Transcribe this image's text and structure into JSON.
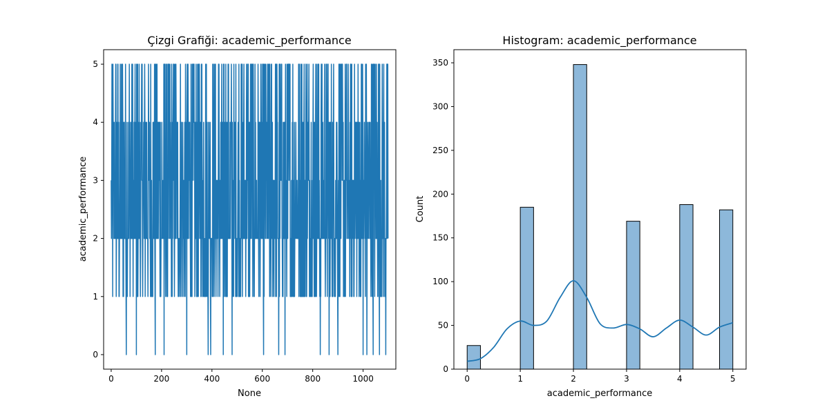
{
  "chart_data": [
    {
      "type": "line",
      "title": "Çizgi Grafiği: academic_performance",
      "xlabel": "None",
      "ylabel": "academic_performance",
      "xlim": [
        -30,
        1130
      ],
      "ylim": [
        -0.25,
        5.25
      ],
      "x_ticks": [
        0,
        200,
        400,
        600,
        800,
        1000
      ],
      "x_tick_labels": [
        "0",
        "200",
        "400",
        "600",
        "800",
        "1000"
      ],
      "y_ticks": [
        0,
        1,
        2,
        3,
        4,
        5
      ],
      "y_tick_labels": [
        "0",
        "1",
        "2",
        "3",
        "4",
        "5"
      ],
      "color": "#1f77b4",
      "n_points": 1100,
      "value_levels": [
        0,
        1,
        2,
        3,
        4,
        5
      ],
      "note_zero_indices_approx": [
        60,
        100,
        175,
        210,
        300,
        385,
        395,
        445,
        480,
        605,
        665,
        690,
        830,
        865,
        900,
        1000,
        1015,
        1040,
        1065,
        1090
      ],
      "grid": false,
      "legend": "none"
    },
    {
      "type": "bar",
      "title": "Histogram: academic_performance",
      "xlabel": "academic_performance",
      "ylabel": "Count",
      "xlim": [
        -0.25,
        5.25
      ],
      "ylim": [
        0,
        365
      ],
      "x_ticks": [
        0,
        1,
        2,
        3,
        4,
        5
      ],
      "x_tick_labels": [
        "0",
        "1",
        "2",
        "3",
        "4",
        "5"
      ],
      "y_ticks": [
        0,
        50,
        100,
        150,
        200,
        250,
        300,
        350
      ],
      "y_tick_labels": [
        "0",
        "50",
        "100",
        "150",
        "200",
        "250",
        "300",
        "350"
      ],
      "bin_width": 0.25,
      "bins": [
        {
          "x0": 0.0,
          "x1": 0.25,
          "count": 27
        },
        {
          "x0": 1.0,
          "x1": 1.25,
          "count": 185
        },
        {
          "x0": 2.0,
          "x1": 2.25,
          "count": 348
        },
        {
          "x0": 3.0,
          "x1": 3.25,
          "count": 169
        },
        {
          "x0": 4.0,
          "x1": 4.25,
          "count": 188
        },
        {
          "x0": 4.75,
          "x1": 5.0,
          "count": 182
        }
      ],
      "kde": {
        "x": [
          0,
          0.25,
          0.5,
          0.75,
          1.0,
          1.25,
          1.5,
          1.75,
          2.0,
          2.25,
          2.5,
          2.75,
          3.0,
          3.25,
          3.5,
          3.75,
          4.0,
          4.25,
          4.5,
          4.75,
          5.0
        ],
        "y": [
          9,
          12,
          25,
          46,
          55,
          50,
          55,
          82,
          101,
          82,
          52,
          47,
          51,
          46,
          37,
          47,
          56,
          48,
          39,
          48,
          53
        ]
      },
      "bar_color": "#8db8da",
      "line_color": "#1f77b4",
      "grid": false,
      "legend": "none"
    }
  ]
}
